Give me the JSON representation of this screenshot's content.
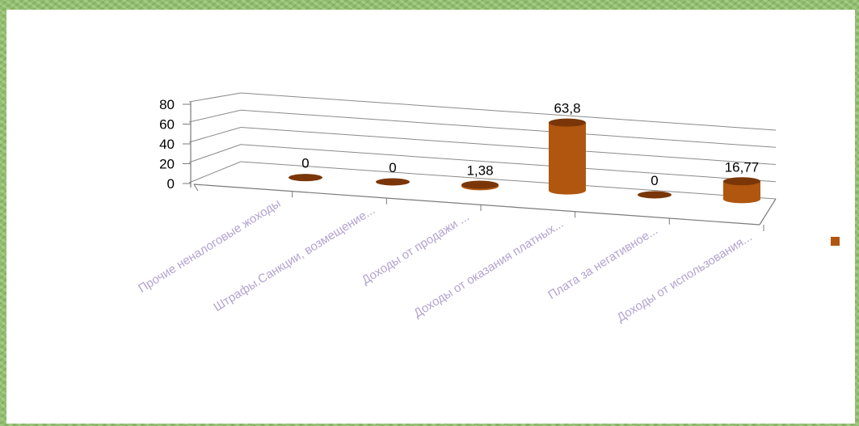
{
  "chart_data": {
    "type": "bar",
    "style": "3d-cylinder",
    "categories": [
      "Прочие неналоговые жоходы",
      "Штрафы.Санкции, возмещение...",
      "Доходы от продажи ...",
      "Доходы от оказания платных...",
      "Плата за негативное...",
      "Доходы от использования..."
    ],
    "values": [
      0,
      0,
      1.38,
      63.8,
      0,
      16.77
    ],
    "data_labels": [
      "0",
      "0",
      "1,38",
      "63,8",
      "0",
      "16,77"
    ],
    "yticks": [
      "0",
      "20",
      "40",
      "60",
      "80"
    ],
    "ylim": [
      0,
      80
    ],
    "grid": true,
    "bar_color": "#b1560f",
    "bar_top_color": "#7a3608",
    "category_label_color": "#b3a3d0",
    "legend_placement": "right"
  }
}
